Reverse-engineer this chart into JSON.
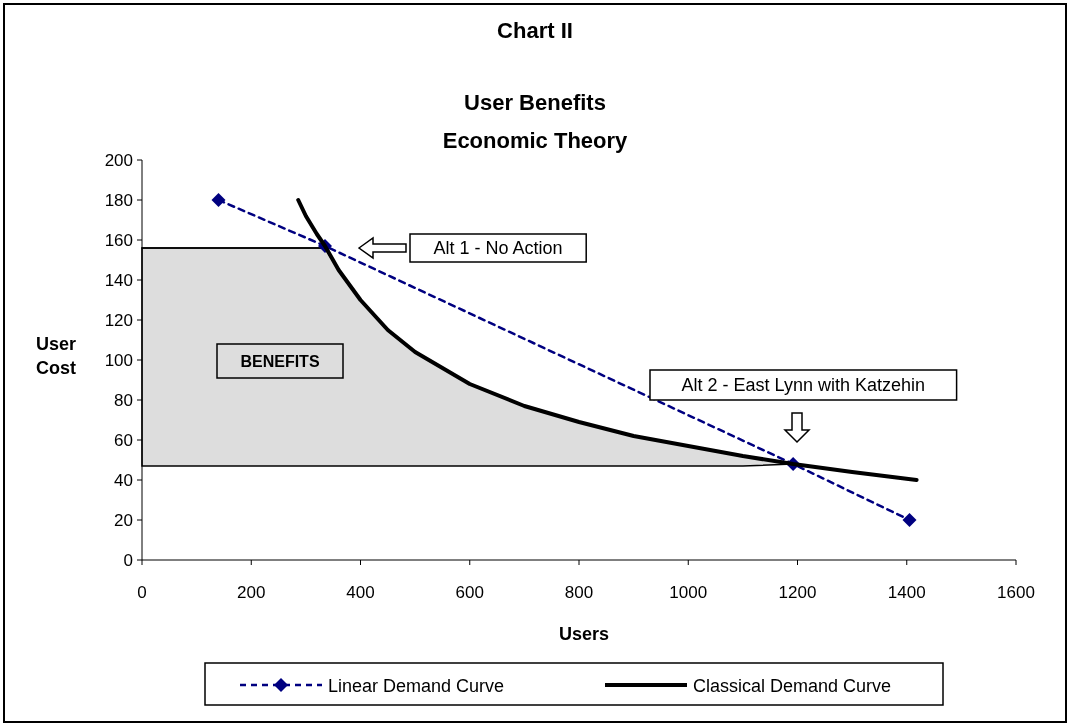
{
  "chart_data": {
    "type": "line",
    "title": "Chart II",
    "subtitle": "User Benefits\nEconomic Theory",
    "xlabel": "Users",
    "ylabel": "User Cost",
    "xlim": [
      0,
      1600
    ],
    "xticks": [
      0,
      200,
      400,
      600,
      800,
      1000,
      1200,
      1400,
      1600
    ],
    "ylim": [
      0,
      200
    ],
    "yticks": [
      0,
      20,
      40,
      60,
      80,
      100,
      120,
      140,
      160,
      180,
      200
    ],
    "grid": false,
    "legend": "bottom",
    "series": [
      {
        "type": "line",
        "color": "#000000",
        "line_style": "solid",
        "marker": "none",
        "x": [
          0,
          335,
          360,
          400,
          450,
          500,
          600,
          700,
          800,
          900,
          1000,
          1100,
          1192
        ],
        "values": [
          156,
          156,
          145,
          130,
          115,
          104,
          88,
          77,
          69,
          62,
          57,
          52,
          48
        ],
        "lower": [
          47,
          47,
          47,
          47,
          47,
          47,
          47,
          47,
          47,
          47,
          47,
          47,
          48
        ],
        "upper": [
          156,
          156,
          145,
          130,
          115,
          104,
          88,
          77,
          69,
          62,
          57,
          52,
          48
        ]
      },
      {
        "name": "Linear Demand Curve",
        "color": "#000080",
        "line_style": "dashed",
        "marker": "diamond",
        "x": [
          140,
          335,
          1192,
          1405
        ],
        "values": [
          180,
          157,
          48,
          20
        ]
      },
      {
        "name": "Classical Demand Curve",
        "color": "#000000",
        "line_style": "solid",
        "marker": "none",
        "x": [
          286,
          300,
          320,
          335,
          360,
          400,
          450,
          500,
          600,
          700,
          800,
          900,
          1000,
          1100,
          1192,
          1300,
          1418
        ],
        "values": [
          180,
          172,
          163,
          157,
          145,
          130,
          115,
          104,
          88,
          77,
          69,
          62,
          57,
          52,
          48,
          44,
          40
        ]
      }
    ],
    "annotations": [
      "BENEFITS",
      "Alt 1 - No Action",
      "Alt 2 - East Lynn with Katzehin"
    ]
  }
}
